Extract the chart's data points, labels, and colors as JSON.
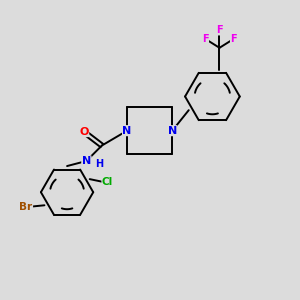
{
  "bg_color": "#dcdcdc",
  "bond_color": "#000000",
  "atom_colors": {
    "N": "#0000ee",
    "O": "#ff0000",
    "Br": "#a05000",
    "Cl": "#00aa00",
    "F": "#ee00ee",
    "C": "#000000",
    "H": "#0000ee"
  },
  "figsize": [
    3.0,
    3.0
  ],
  "dpi": 100
}
